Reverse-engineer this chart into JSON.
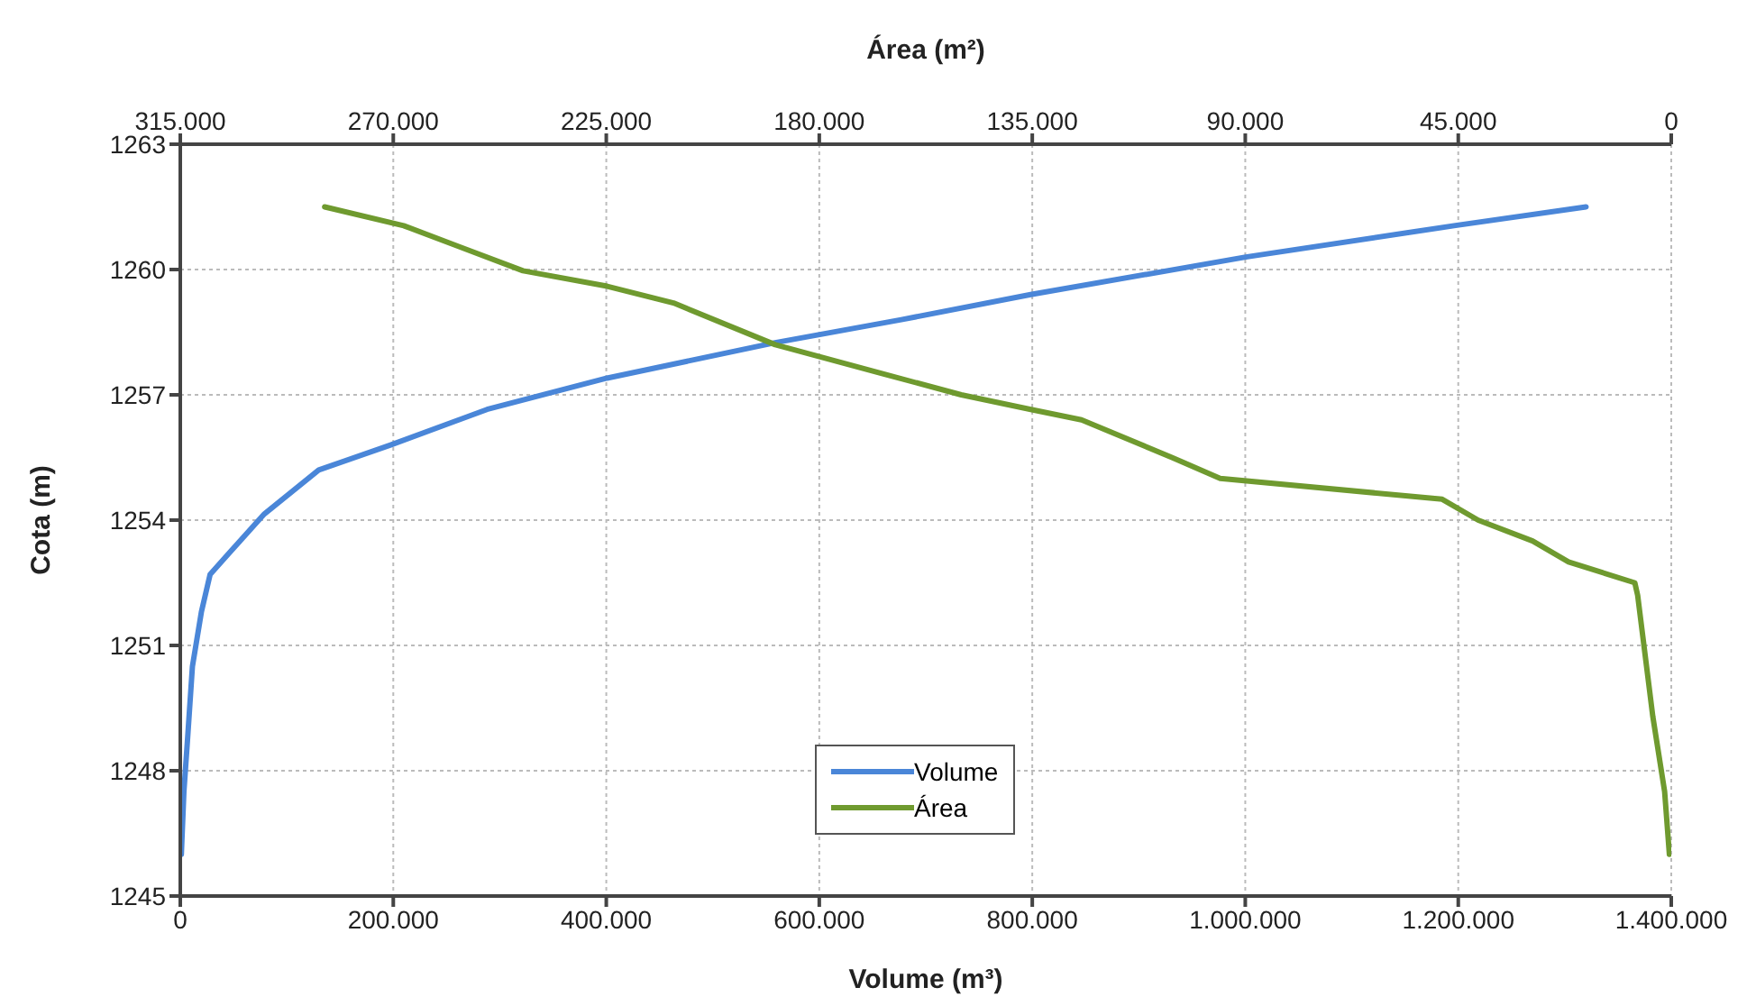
{
  "chart_data": {
    "type": "line",
    "xlabel": "Volume (m³)",
    "x2label": "Área (m²)",
    "ylabel": "Cota (m)",
    "xlim": [
      0,
      1400000
    ],
    "xticks": [
      0,
      {
        "value": 200000,
        "label": "200.000"
      },
      {
        "value": 400000,
        "label": "400.000"
      },
      {
        "value": 600000,
        "label": "600.000"
      },
      {
        "value": 800000,
        "label": "800.000"
      },
      {
        "value": 1000000,
        "label": "1.000.000"
      },
      {
        "value": 1200000,
        "label": "1.200.000"
      },
      {
        "value": 1400000,
        "label": "1.400.000"
      }
    ],
    "x2lim": [
      315000,
      0
    ],
    "x2ticks": [
      {
        "value": 315000,
        "label": "315.000"
      },
      {
        "value": 270000,
        "label": "270.000"
      },
      {
        "value": 225000,
        "label": "225.000"
      },
      {
        "value": 180000,
        "label": "180.000"
      },
      {
        "value": 135000,
        "label": "135.000"
      },
      {
        "value": 90000,
        "label": "90.000"
      },
      {
        "value": 45000,
        "label": "45.000"
      },
      0
    ],
    "ylim": [
      1245,
      1263
    ],
    "yticks": [
      1245,
      1248,
      1251,
      1254,
      1257,
      1260,
      1263
    ],
    "grid": true,
    "legend": "bottom",
    "marker": "none",
    "line_style": "solid",
    "series": [
      {
        "name": "Volume",
        "color": "#4a86d8",
        "x": [
          1000,
          3400,
          6800,
          11400,
          19800,
          28000,
          56000,
          79000,
          130000,
          197500,
          288000,
          400700,
          558600,
          677000,
          798500,
          1000500,
          1196000,
          1320000
        ],
        "values": [
          1246.0,
          1247.5,
          1248.75,
          1250.5,
          1251.8,
          1252.7,
          1253.5,
          1254.15,
          1255.2,
          1255.8,
          1256.65,
          1257.4,
          1258.25,
          1258.8,
          1259.4,
          1260.3,
          1261.05,
          1261.5
        ]
      },
      {
        "name": "Área",
        "color": "#6f9a2f",
        "axis": "x2",
        "x": [
          284500,
          267800,
          242600,
          224800,
          210800,
          189300,
          166400,
          150000,
          135300,
          124600,
          105500,
          95300,
          48400,
          40800,
          29300,
          21700,
          7700,
          7100,
          3900,
          1400,
          400
        ],
        "values": [
          1261.5,
          1261.05,
          1259.97,
          1259.6,
          1259.2,
          1258.2,
          1257.5,
          1257.0,
          1256.65,
          1256.4,
          1255.5,
          1255.0,
          1254.5,
          1254.0,
          1253.5,
          1253.0,
          1252.5,
          1252.2,
          1249.3,
          1247.5,
          1246.0
        ]
      }
    ]
  }
}
